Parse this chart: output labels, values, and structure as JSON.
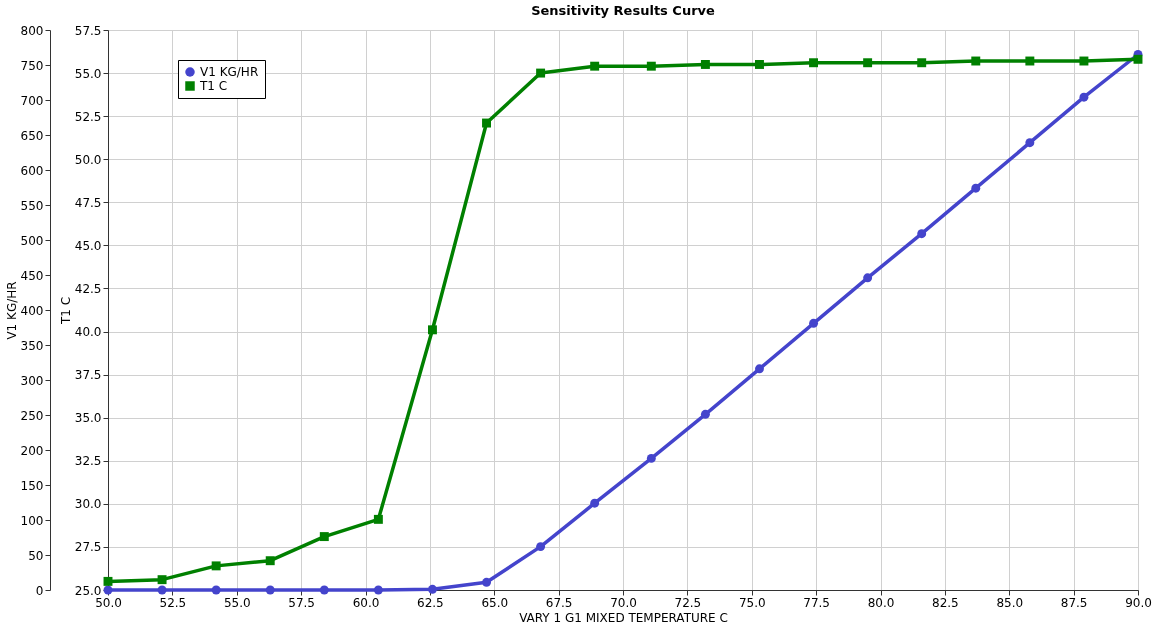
{
  "chart_data": {
    "type": "line",
    "title": "Sensitivity Results Curve",
    "xlabel": "VARY   1 G1 MIXED TEMPERATURE C",
    "ylabel": "V1 KG/HR",
    "y2label": "T1 C",
    "x": [
      50,
      52.1,
      54.2,
      56.3,
      58.4,
      60.5,
      62.6,
      64.7,
      66.8,
      68.9,
      71.1,
      73.2,
      75.3,
      77.4,
      79.5,
      81.6,
      83.7,
      85.8,
      87.9,
      90
    ],
    "series": [
      {
        "name": "V1 KG/HR",
        "color": "#4444cc",
        "marker": "circle",
        "values": [
          0,
          0,
          0,
          0,
          0,
          0,
          1,
          11,
          62,
          124,
          188,
          251,
          316,
          381,
          446,
          509,
          574,
          639,
          704,
          765
        ]
      },
      {
        "name": "T1 C",
        "color": "#008000",
        "marker": "square",
        "axis": "y2",
        "values": [
          25.5,
          25.6,
          26.4,
          26.7,
          28.1,
          29.1,
          40.1,
          52.1,
          55.0,
          55.4,
          55.4,
          55.5,
          55.5,
          55.6,
          55.6,
          55.6,
          55.7,
          55.7,
          55.7,
          55.8
        ]
      }
    ],
    "xlim": [
      50,
      90
    ],
    "xticks": [
      {
        "value": 50,
        "label": "50.0"
      },
      {
        "value": 52.5,
        "label": "52.5"
      },
      {
        "value": 55,
        "label": "55.0"
      },
      {
        "value": 57.5,
        "label": "57.5"
      },
      {
        "value": 60,
        "label": "60.0"
      },
      {
        "value": 62.5,
        "label": "62.5"
      },
      {
        "value": 65,
        "label": "65.0"
      },
      {
        "value": 67.5,
        "label": "67.5"
      },
      {
        "value": 70,
        "label": "70.0"
      },
      {
        "value": 72.5,
        "label": "72.5"
      },
      {
        "value": 75,
        "label": "75.0"
      },
      {
        "value": 77.5,
        "label": "77.5"
      },
      {
        "value": 80,
        "label": "80.0"
      },
      {
        "value": 82.5,
        "label": "82.5"
      },
      {
        "value": 85,
        "label": "85.0"
      },
      {
        "value": 87.5,
        "label": "87.5"
      },
      {
        "value": 90,
        "label": "90.0"
      }
    ],
    "ylim": [
      0,
      800
    ],
    "yticks": [
      0,
      50,
      100,
      150,
      200,
      250,
      300,
      350,
      400,
      450,
      500,
      550,
      600,
      650,
      700,
      750,
      800
    ],
    "y2lim": [
      25,
      57.5
    ],
    "y2ticks": [
      {
        "value": 25,
        "label": "25.0"
      },
      {
        "value": 27.5,
        "label": "27.5"
      },
      {
        "value": 30,
        "label": "30.0"
      },
      {
        "value": 32.5,
        "label": "32.5"
      },
      {
        "value": 35,
        "label": "35.0"
      },
      {
        "value": 37.5,
        "label": "37.5"
      },
      {
        "value": 40,
        "label": "40.0"
      },
      {
        "value": 42.5,
        "label": "42.5"
      },
      {
        "value": 45,
        "label": "45.0"
      },
      {
        "value": 47.5,
        "label": "47.5"
      },
      {
        "value": 50,
        "label": "50.0"
      },
      {
        "value": 52.5,
        "label": "52.5"
      },
      {
        "value": 55,
        "label": "55.0"
      },
      {
        "value": 57.5,
        "label": "57.5"
      }
    ],
    "grid": true,
    "legend": "top left",
    "line_style": "solid"
  }
}
